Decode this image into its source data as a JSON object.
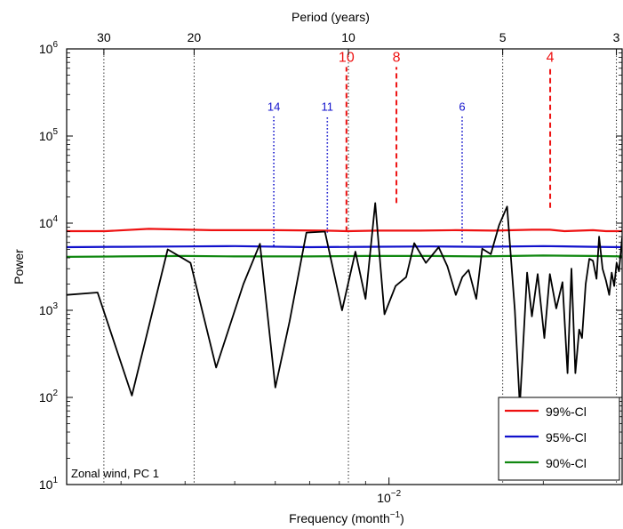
{
  "chart_data": {
    "type": "line",
    "xlabel_main": "Frequency (month",
    "xlabel_exp": "−1",
    "xlabel_end": ")",
    "ylabel": "Power",
    "top_label": "Period (years)",
    "annotation": "Zonal wind, PC 1",
    "x_scale": "log",
    "y_scale": "log",
    "xlim": [
      0.00235,
      0.0285
    ],
    "ylim": [
      10,
      1000000
    ],
    "x_major_tick": {
      "value": 0.01,
      "base": "10",
      "exp": "−2"
    },
    "y_ticks": [
      {
        "value": 10,
        "base": "10",
        "exp": "1"
      },
      {
        "value": 100,
        "base": "10",
        "exp": "2"
      },
      {
        "value": 1000,
        "base": "10",
        "exp": "3"
      },
      {
        "value": 10000,
        "base": "10",
        "exp": "4"
      },
      {
        "value": 100000,
        "base": "10",
        "exp": "5"
      },
      {
        "value": 1000000,
        "base": "10",
        "exp": "6"
      }
    ],
    "period_ticks": [
      {
        "years": 30,
        "label": "30"
      },
      {
        "years": 20,
        "label": "20"
      },
      {
        "years": 10,
        "label": "10"
      },
      {
        "years": 5,
        "label": "5"
      },
      {
        "years": 3,
        "label": "3"
      }
    ],
    "peak_markers": [
      {
        "label": "10",
        "x": 0.00826,
        "y_from": 8000,
        "y_to": 620000,
        "color": "#ee1111",
        "style": "dashed"
      },
      {
        "label": "8",
        "x": 0.01034,
        "y_from": 17000,
        "y_to": 620000,
        "color": "#ee1111",
        "style": "dashed"
      },
      {
        "label": "4",
        "x": 0.02063,
        "y_from": 15000,
        "y_to": 620000,
        "color": "#ee1111",
        "style": "dashed"
      },
      {
        "label": "14",
        "x": 0.00596,
        "y_from": 5500,
        "y_to": 170000,
        "color": "#1111cc",
        "style": "dotted"
      },
      {
        "label": "11",
        "x": 0.00758,
        "y_from": 7800,
        "y_to": 170000,
        "color": "#1111cc",
        "style": "dotted"
      },
      {
        "label": "6",
        "x": 0.01389,
        "y_from": 6000,
        "y_to": 170000,
        "color": "#1111cc",
        "style": "dotted"
      }
    ],
    "series": [
      {
        "name": "99%-CI",
        "color": "#ee1111",
        "x": [
          0.00235,
          0.0028,
          0.0034,
          0.0045,
          0.006,
          0.0075,
          0.0083,
          0.0095,
          0.0115,
          0.0135,
          0.016,
          0.019,
          0.0206,
          0.022,
          0.025,
          0.0265,
          0.0285
        ],
        "y": [
          8100,
          8100,
          8600,
          8300,
          8300,
          8200,
          8100,
          8200,
          8200,
          8300,
          8200,
          8400,
          8400,
          8100,
          8300,
          8100,
          8100
        ]
      },
      {
        "name": "95%-CI",
        "color": "#1111cc",
        "x": [
          0.00235,
          0.003,
          0.004,
          0.005,
          0.007,
          0.009,
          0.012,
          0.015,
          0.02,
          0.025,
          0.0285
        ],
        "y": [
          5300,
          5350,
          5400,
          5450,
          5300,
          5350,
          5400,
          5350,
          5450,
          5350,
          5300
        ]
      },
      {
        "name": "90%-CI",
        "color": "#118811",
        "x": [
          0.00235,
          0.003,
          0.004,
          0.005,
          0.007,
          0.009,
          0.012,
          0.015,
          0.02,
          0.025,
          0.0285
        ],
        "y": [
          4100,
          4150,
          4200,
          4150,
          4150,
          4200,
          4200,
          4150,
          4250,
          4200,
          4150
        ]
      },
      {
        "name": "",
        "color": "#000000",
        "x": [
          0.00235,
          0.0027,
          0.00315,
          0.0037,
          0.0041,
          0.0046,
          0.0052,
          0.0056,
          0.006,
          0.0064,
          0.0069,
          0.0075,
          0.0081,
          0.0086,
          0.009,
          0.0094,
          0.0098,
          0.0103,
          0.0108,
          0.0112,
          0.0118,
          0.0125,
          0.013,
          0.0135,
          0.0139,
          0.0143,
          0.0148,
          0.0152,
          0.0158,
          0.0164,
          0.017,
          0.0176,
          0.018,
          0.0186,
          0.019,
          0.0195,
          0.0201,
          0.0206,
          0.0212,
          0.0218,
          0.0223,
          0.0227,
          0.0231,
          0.0235,
          0.0238,
          0.0242,
          0.0246,
          0.025,
          0.0254,
          0.0257,
          0.0261,
          0.0265,
          0.0269,
          0.0272,
          0.0275,
          0.0278,
          0.0281,
          0.0285
        ],
        "y": [
          1500,
          1600,
          105,
          5000,
          3500,
          220,
          2000,
          5800,
          130,
          750,
          7800,
          8000,
          1000,
          4700,
          1350,
          17000,
          900,
          1900,
          2400,
          5900,
          3500,
          5300,
          3200,
          1500,
          2400,
          2900,
          1350,
          5100,
          4400,
          9500,
          15500,
          1000,
          80,
          2700,
          850,
          2600,
          480,
          2600,
          1050,
          2100,
          190,
          3000,
          190,
          600,
          480,
          2000,
          3900,
          3700,
          2300,
          7000,
          3000,
          2200,
          1500,
          2700,
          1900,
          3500,
          2800,
          6800
        ]
      }
    ],
    "legend": {
      "position": "bottom-right",
      "entries": [
        {
          "label": "99%-Cl",
          "color": "#ee1111"
        },
        {
          "label": "95%-Cl",
          "color": "#1111cc"
        },
        {
          "label": "90%-Cl",
          "color": "#118811"
        }
      ]
    }
  }
}
